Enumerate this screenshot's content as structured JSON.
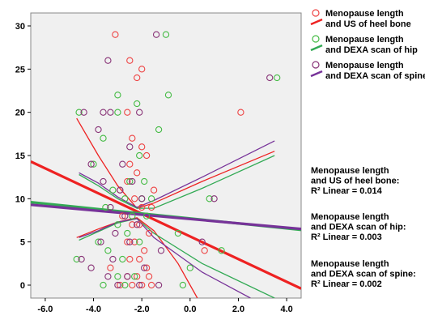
{
  "chart_data": {
    "type": "scatter",
    "xlim": [
      -6.6,
      4.6
    ],
    "ylim": [
      -1.5,
      31.5
    ],
    "xticks": [
      -6,
      -4,
      -2,
      0,
      2,
      4
    ],
    "yticks": [
      0,
      5,
      10,
      15,
      20,
      25,
      30
    ],
    "xtick_labels": [
      "-6.0",
      "-4.0",
      "-2.0",
      "0.0",
      "2.0",
      "4.0"
    ],
    "ytick_labels": [
      "0",
      "5",
      "10",
      "15",
      "20",
      "25",
      "30"
    ],
    "grid": false,
    "legend_position": "top-right, outside plot",
    "plot_background": "#f0f0f0",
    "series": [
      {
        "name": "Menopause length and US of heel bone",
        "label_lines": [
          "Menopause length",
          "and US of heel bone"
        ],
        "color": "#ee4444",
        "fit_color": "#ee2222",
        "points": [
          [
            -3.1,
            29
          ],
          [
            -2.5,
            26
          ],
          [
            -2.2,
            24
          ],
          [
            -2.0,
            25
          ],
          [
            2.1,
            20
          ],
          [
            -2.6,
            20
          ],
          [
            -2.4,
            17
          ],
          [
            -2.0,
            16
          ],
          [
            -1.8,
            15
          ],
          [
            -2.5,
            14
          ],
          [
            -2.2,
            13
          ],
          [
            -2.6,
            12
          ],
          [
            -2.9,
            11
          ],
          [
            -2.3,
            10
          ],
          [
            -2.0,
            9
          ],
          [
            -1.6,
            9
          ],
          [
            -2.8,
            8
          ],
          [
            -2.4,
            7
          ],
          [
            -2.1,
            7
          ],
          [
            -1.7,
            6
          ],
          [
            -2.6,
            5
          ],
          [
            -2.3,
            5
          ],
          [
            -1.9,
            4
          ],
          [
            -2.5,
            3
          ],
          [
            -2.1,
            3
          ],
          [
            -1.8,
            2
          ],
          [
            -2.6,
            1
          ],
          [
            -2.2,
            1
          ],
          [
            -1.7,
            1
          ],
          [
            -2.9,
            0
          ],
          [
            -2.4,
            0
          ],
          [
            -2.0,
            0
          ],
          [
            -1.6,
            0
          ],
          [
            0.6,
            4
          ],
          [
            -3.3,
            2
          ],
          [
            -1.5,
            11
          ]
        ],
        "fit": [
          [
            -6.6,
            14.3
          ],
          [
            4.6,
            -0.4
          ]
        ],
        "ci_upper": [
          [
            -4.7,
            19.3
          ],
          [
            -3.8,
            15.0
          ],
          [
            -3.0,
            11.5
          ],
          [
            -2.2,
            8.9
          ],
          [
            -1.5,
            9.5
          ],
          [
            0.5,
            12.0
          ],
          [
            3.5,
            15.5
          ]
        ],
        "ci_lower": [
          [
            -4.7,
            5.5
          ],
          [
            -3.8,
            6.5
          ],
          [
            -3.0,
            7.3
          ],
          [
            -2.2,
            7.8
          ],
          [
            -1.5,
            6.3
          ],
          [
            -0.5,
            2.5
          ],
          [
            0.3,
            -1.5
          ]
        ],
        "r2_lines": [
          "Menopause length",
          "and US of heel bone:",
          "R² Linear = 0.014"
        ]
      },
      {
        "name": "Menopause length and DEXA scan of hip",
        "label_lines": [
          "Menopause length",
          "and DEXA scan of hip"
        ],
        "color": "#44bb44",
        "fit_color": "#33aa55",
        "points": [
          [
            -1.0,
            29
          ],
          [
            -3.0,
            22
          ],
          [
            -2.2,
            21
          ],
          [
            -0.9,
            22
          ],
          [
            -4.6,
            20
          ],
          [
            -3.6,
            17
          ],
          [
            -3.0,
            20
          ],
          [
            -1.3,
            18
          ],
          [
            -4.0,
            14
          ],
          [
            -2.1,
            15
          ],
          [
            -2.5,
            12
          ],
          [
            -3.2,
            11
          ],
          [
            -1.9,
            12
          ],
          [
            -2.7,
            10
          ],
          [
            -2.0,
            10
          ],
          [
            -1.6,
            10
          ],
          [
            -3.5,
            9
          ],
          [
            -2.4,
            8
          ],
          [
            -1.8,
            8
          ],
          [
            -3.0,
            7
          ],
          [
            -2.6,
            6
          ],
          [
            -3.8,
            5
          ],
          [
            -2.1,
            5
          ],
          [
            -3.4,
            4
          ],
          [
            -2.8,
            3
          ],
          [
            -4.7,
            3
          ],
          [
            -3.0,
            1
          ],
          [
            -2.3,
            1
          ],
          [
            -3.6,
            0
          ],
          [
            -2.7,
            0
          ],
          [
            -0.3,
            0
          ],
          [
            0.0,
            2
          ],
          [
            0.8,
            10
          ],
          [
            1.3,
            4
          ],
          [
            3.6,
            24
          ],
          [
            -0.5,
            6
          ]
        ],
        "fit": [
          [
            -6.6,
            9.6
          ],
          [
            4.6,
            6.4
          ]
        ],
        "ci_upper": [
          [
            -4.6,
            12.8
          ],
          [
            -3.8,
            11.5
          ],
          [
            -3.0,
            10.0
          ],
          [
            -2.2,
            8.9
          ],
          [
            -1.5,
            8.9
          ],
          [
            0.5,
            11.2
          ],
          [
            3.5,
            15.0
          ]
        ],
        "ci_lower": [
          [
            -4.6,
            5.2
          ],
          [
            -3.8,
            6.2
          ],
          [
            -3.0,
            7.2
          ],
          [
            -2.2,
            7.7
          ],
          [
            -1.5,
            6.0
          ],
          [
            0.5,
            2.5
          ],
          [
            3.5,
            -1.5
          ]
        ],
        "r2_lines": [
          "Menopause length",
          "and DEXA scan of hip:",
          "R² Linear = 0.003"
        ]
      },
      {
        "name": "Menopause length and DEXA scan of spine",
        "label_lines": [
          "Menopause length",
          "and DEXA scan of spine"
        ],
        "color": "#883377",
        "fit_color": "#773399",
        "points": [
          [
            -3.4,
            26
          ],
          [
            -1.4,
            29
          ],
          [
            -3.6,
            20
          ],
          [
            -4.4,
            20
          ],
          [
            -3.3,
            20
          ],
          [
            -2.1,
            20
          ],
          [
            -3.8,
            18
          ],
          [
            -2.5,
            16
          ],
          [
            -4.1,
            14
          ],
          [
            -3.6,
            12
          ],
          [
            -2.4,
            12
          ],
          [
            -2.9,
            11
          ],
          [
            -2.0,
            10
          ],
          [
            -3.3,
            9
          ],
          [
            -2.7,
            8
          ],
          [
            -2.2,
            7
          ],
          [
            -3.1,
            6
          ],
          [
            -3.7,
            5
          ],
          [
            -2.5,
            5
          ],
          [
            -3.2,
            3
          ],
          [
            -4.1,
            2
          ],
          [
            -3.4,
            1
          ],
          [
            -2.6,
            1
          ],
          [
            -3.0,
            0
          ],
          [
            -2.1,
            0
          ],
          [
            -1.3,
            0
          ],
          [
            0.5,
            5
          ],
          [
            1.0,
            10
          ],
          [
            3.3,
            24
          ],
          [
            -4.5,
            3
          ],
          [
            -2.8,
            14
          ],
          [
            -1.9,
            2
          ],
          [
            -1.2,
            4
          ]
        ],
        "fit": [
          [
            -6.6,
            9.3
          ],
          [
            4.6,
            6.5
          ]
        ],
        "ci_upper": [
          [
            -4.6,
            13.0
          ],
          [
            -3.8,
            11.8
          ],
          [
            -3.0,
            10.2
          ],
          [
            -2.2,
            9.0
          ],
          [
            -1.5,
            9.8
          ],
          [
            0.5,
            12.5
          ],
          [
            3.5,
            16.7
          ]
        ],
        "ci_lower": [
          [
            -4.6,
            5.5
          ],
          [
            -3.8,
            6.3
          ],
          [
            -3.0,
            7.3
          ],
          [
            -2.2,
            7.7
          ],
          [
            -1.5,
            5.5
          ],
          [
            0.5,
            1.5
          ],
          [
            2.5,
            -1.5
          ]
        ],
        "r2_lines": [
          "Menopause length",
          "and DEXA scan of spine:",
          "R² Linear = 0.002"
        ]
      }
    ]
  }
}
